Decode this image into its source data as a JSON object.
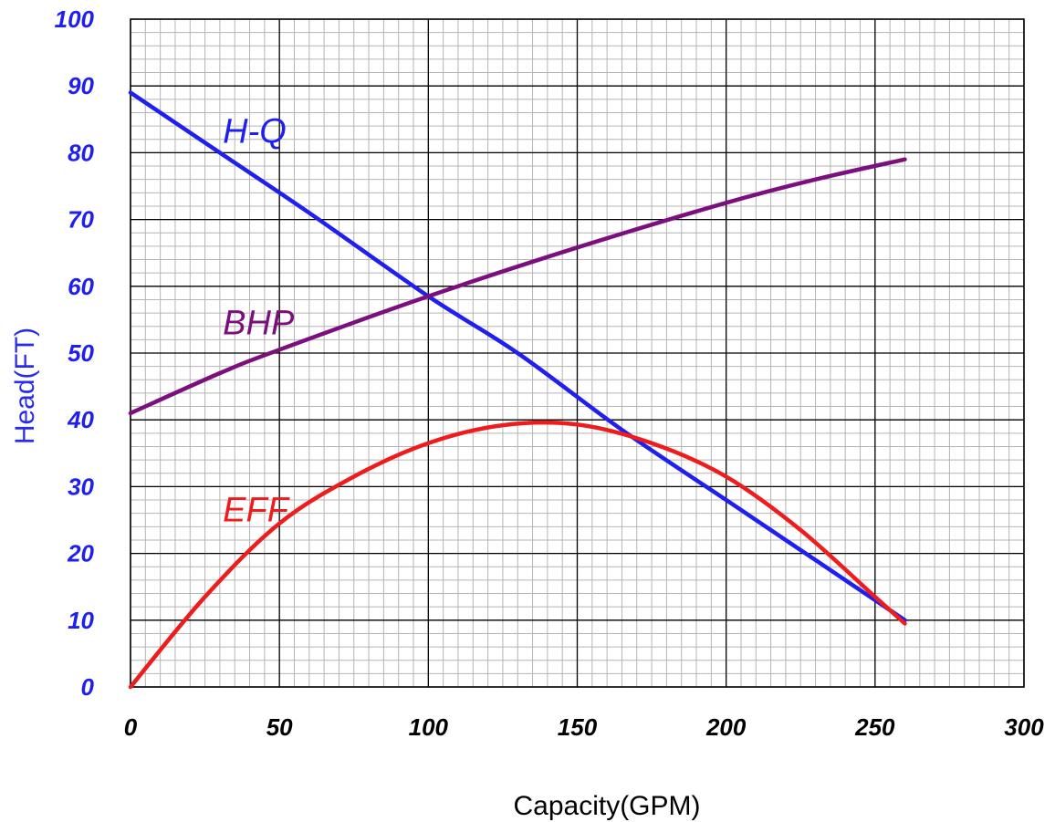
{
  "chart_data": {
    "type": "line",
    "xlabel": "Capacity(GPM)",
    "ylabel": "Head(FT)",
    "xlim": [
      0,
      300
    ],
    "ylim": [
      0,
      100
    ],
    "x_ticks": [
      "0",
      "50",
      "100",
      "150",
      "200",
      "250",
      "300"
    ],
    "y_ticks": [
      "0",
      "10",
      "20",
      "30",
      "40",
      "50",
      "60",
      "70",
      "80",
      "90",
      "100"
    ],
    "grid": true,
    "colors": {
      "major_grid": "#000000",
      "minor_grid": "#b4b4b4",
      "y_tick_color": "#1f1ff0",
      "x_tick_color": "#000000",
      "ylabel_color": "#2a2aee",
      "xlabel_color": "#000000"
    },
    "series": [
      {
        "name": "H-Q",
        "color": "#1f1ff0",
        "x": [
          0,
          30,
          60,
          100,
          130,
          165,
          200,
          230,
          260
        ],
        "y": [
          89,
          80,
          71,
          58.5,
          50,
          38.5,
          28,
          19,
          10
        ]
      },
      {
        "name": "BHP",
        "color": "#7b0f7e",
        "x": [
          0,
          30,
          50,
          100,
          150,
          200,
          230,
          260
        ],
        "y": [
          41,
          47,
          50.5,
          58.5,
          65.8,
          72.5,
          76,
          79
        ]
      },
      {
        "name": "EFF",
        "color": "#ee1c1c",
        "x": [
          0,
          25,
          50,
          75,
          100,
          125,
          150,
          175,
          200,
          225,
          250,
          260
        ],
        "y": [
          0,
          13.5,
          24.5,
          31.5,
          36.5,
          39.2,
          39.3,
          36.5,
          31.5,
          23.5,
          13.5,
          9.5
        ]
      }
    ]
  }
}
